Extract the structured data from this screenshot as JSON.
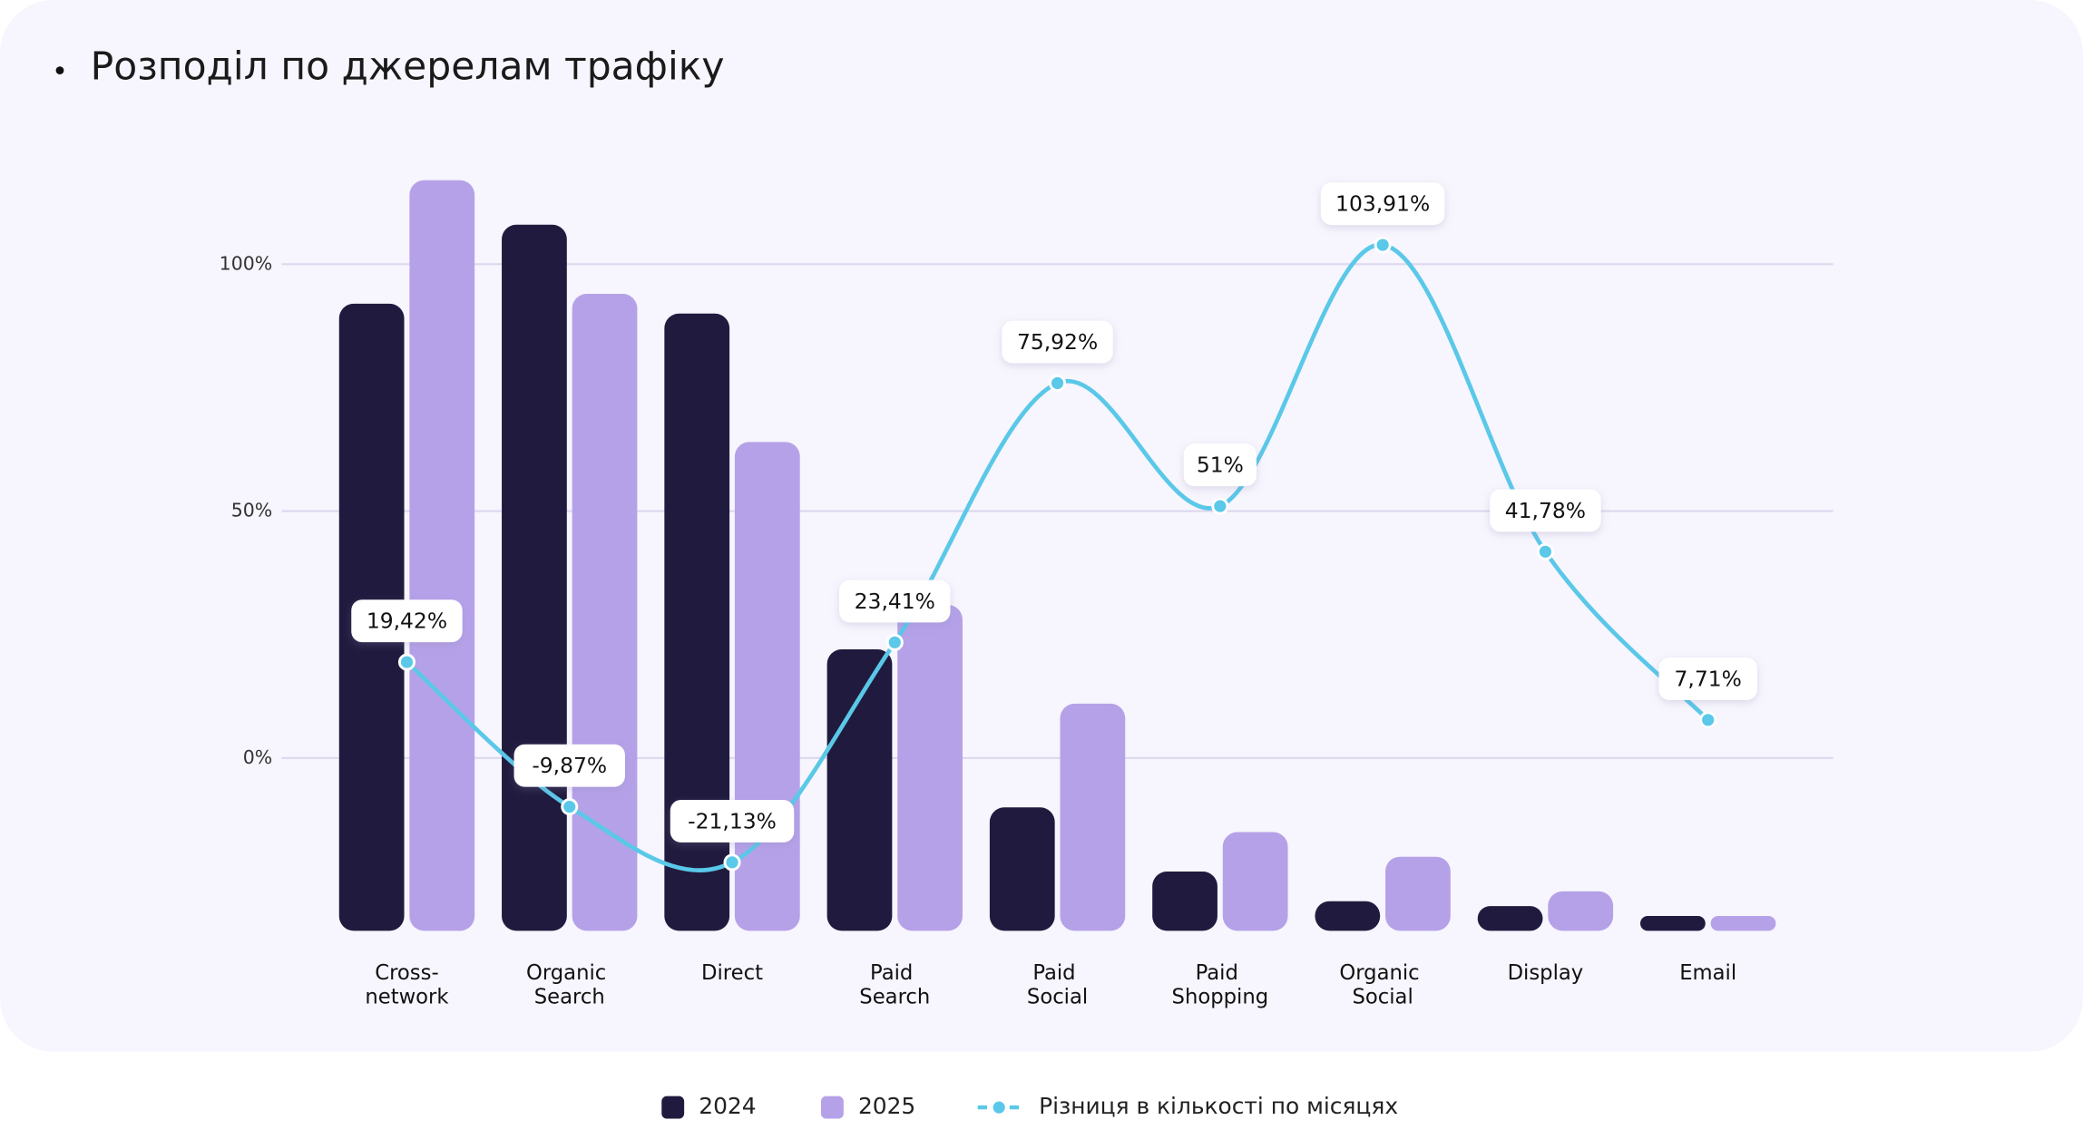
{
  "chart_data": {
    "type": "bar",
    "title": "Розподіл по джерелам трафіку",
    "categories": [
      "Cross-network",
      "Organic Search",
      "Direct",
      "Paid Search",
      "Paid Social",
      "Paid Shopping",
      "Organic Social",
      "Display",
      "Email"
    ],
    "series": [
      {
        "name": "2024",
        "color": "#201b3e",
        "axis": "y2",
        "values": [
          127,
          143,
          125,
          57,
          25,
          12,
          6,
          5,
          3
        ]
      },
      {
        "name": "2025",
        "color": "#b5a1e8",
        "axis": "y2",
        "values": [
          152,
          129,
          99,
          66,
          46,
          20,
          15,
          8,
          3
        ]
      },
      {
        "name": "Різниця в кількості по місяцях",
        "color": "#5ac8e8",
        "type": "line",
        "values": [
          19.42,
          -9.87,
          -21.13,
          23.41,
          75.92,
          51,
          103.91,
          41.78,
          7.71
        ],
        "value_labels": [
          "19,42%",
          "-9,87%",
          "-21,13%",
          "23,41%",
          "75,92%",
          "51%",
          "103,91%",
          "41,78%",
          "7,71%"
        ]
      }
    ],
    "ylim": [
      -35,
      125
    ],
    "yticks": [
      {
        "value": 0,
        "label": "0%"
      },
      {
        "value": 50,
        "label": "50%"
      },
      {
        "value": 100,
        "label": "100%"
      }
    ],
    "y2lim": [
      0,
      160
    ],
    "grid": true,
    "legend": "bottom"
  }
}
